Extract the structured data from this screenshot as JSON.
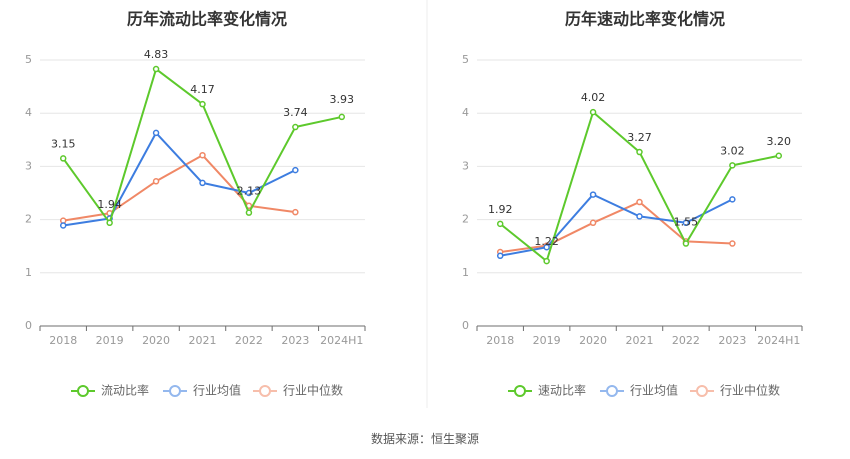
{
  "source": "数据来源：恒生聚源",
  "chart_data": [
    {
      "type": "line",
      "title": "历年流动比率变化情况",
      "categories": [
        "2018",
        "2019",
        "2020",
        "2021",
        "2022",
        "2023",
        "2024H1"
      ],
      "yticks": [
        "0",
        "1",
        "2",
        "3",
        "4",
        "5"
      ],
      "ylim": [
        0,
        5
      ],
      "grid": true,
      "legend": "bottom",
      "series": [
        {
          "name": "流动比率",
          "color": "#5dc92c",
          "values": [
            3.15,
            1.94,
            4.83,
            4.17,
            2.13,
            3.74,
            3.93
          ],
          "labels": [
            "3.15",
            "1.94",
            "4.83",
            "4.17",
            "2.13",
            "3.74",
            "3.93"
          ]
        },
        {
          "name": "行业均值",
          "color": "#3d7de0",
          "values": [
            1.89,
            2.02,
            3.63,
            2.69,
            2.5,
            2.93,
            null
          ]
        },
        {
          "name": "行业中位数",
          "color": "#f08866",
          "values": [
            1.98,
            2.12,
            2.72,
            3.21,
            2.26,
            2.14,
            null
          ]
        }
      ]
    },
    {
      "type": "line",
      "title": "历年速动比率变化情况",
      "categories": [
        "2018",
        "2019",
        "2020",
        "2021",
        "2022",
        "2023",
        "2024H1"
      ],
      "yticks": [
        "0",
        "1",
        "2",
        "3",
        "4",
        "5"
      ],
      "ylim": [
        0,
        5
      ],
      "grid": true,
      "legend": "bottom",
      "series": [
        {
          "name": "速动比率",
          "color": "#5dc92c",
          "values": [
            1.92,
            1.22,
            4.02,
            3.27,
            1.55,
            3.02,
            3.2
          ],
          "labels": [
            "1.92",
            "1.22",
            "4.02",
            "3.27",
            "1.55",
            "3.02",
            "3.20"
          ]
        },
        {
          "name": "行业均值",
          "color": "#3d7de0",
          "values": [
            1.32,
            1.48,
            2.47,
            2.06,
            1.94,
            2.38,
            null
          ]
        },
        {
          "name": "行业中位数",
          "color": "#f08866",
          "values": [
            1.39,
            1.51,
            1.94,
            2.33,
            1.59,
            1.55,
            null
          ]
        }
      ]
    }
  ]
}
